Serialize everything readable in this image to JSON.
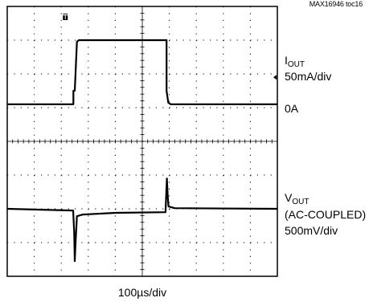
{
  "figure_ref": "MAX16946 toc16",
  "channels": [
    {
      "name_main": "I",
      "name_sub": "OUT",
      "scale": "50mA/div",
      "zero": "0A"
    },
    {
      "name_main": "V",
      "name_sub": "OUT",
      "coupling": "(AC-COUPLED)",
      "scale": "500mV/div"
    }
  ],
  "time_scale": "100µs/div",
  "chart_data": {
    "type": "line",
    "title": "",
    "xlabel": "100µs/div",
    "x_unit": "µs",
    "xlim": [
      0,
      1000
    ],
    "ylim": [
      -4,
      4
    ],
    "y_unit": "div",
    "divisions": {
      "x": 10,
      "y": 8
    },
    "grid": true,
    "trigger_marker_x": 215,
    "series": [
      {
        "name": "I_OUT",
        "points": [
          [
            0,
            1.1
          ],
          [
            245,
            1.1
          ],
          [
            245,
            1.5
          ],
          [
            250,
            1.5
          ],
          [
            258,
            2.95
          ],
          [
            265,
            3.0
          ],
          [
            590,
            3.0
          ],
          [
            590,
            1.5
          ],
          [
            596,
            1.15
          ],
          [
            605,
            1.1
          ],
          [
            1000,
            1.1
          ]
        ]
      },
      {
        "name": "V_OUT",
        "points": [
          [
            0,
            -2.0
          ],
          [
            244,
            -2.05
          ],
          [
            248,
            -2.7
          ],
          [
            250,
            -3.55
          ],
          [
            253,
            -3.0
          ],
          [
            258,
            -2.22
          ],
          [
            280,
            -2.17
          ],
          [
            400,
            -2.12
          ],
          [
            586,
            -2.1
          ],
          [
            589,
            -1.5
          ],
          [
            591,
            -1.1
          ],
          [
            594,
            -1.6
          ],
          [
            597,
            -1.93
          ],
          [
            620,
            -1.98
          ],
          [
            1000,
            -2.0
          ]
        ]
      }
    ]
  }
}
